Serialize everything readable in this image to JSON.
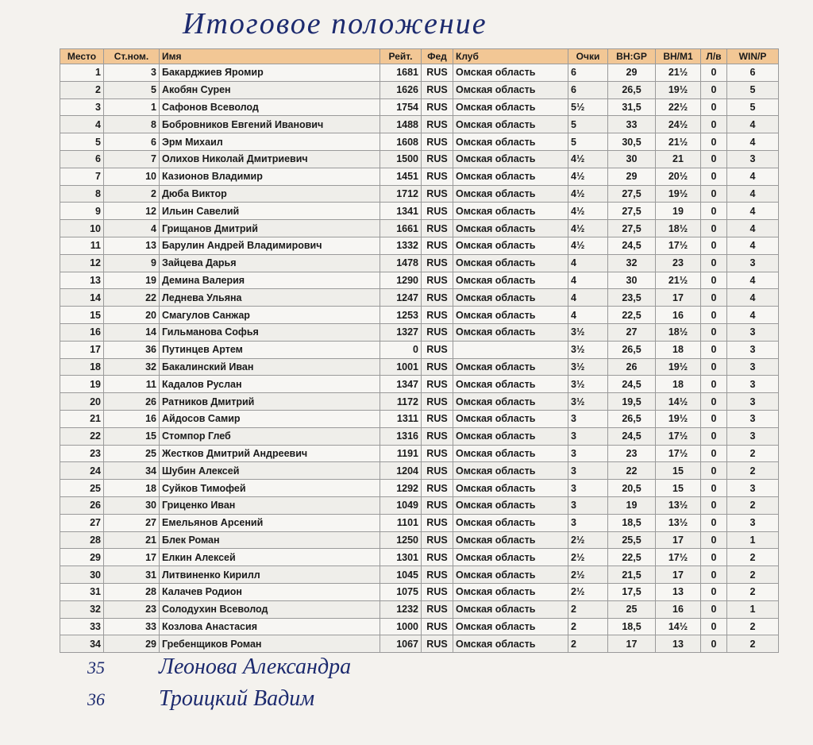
{
  "header": {
    "title": "Итоговое положение"
  },
  "table": {
    "columns": [
      "Место",
      "Ст.ном.",
      "Имя",
      "Рейт.",
      "Фед",
      "Клуб",
      "Очки",
      "ВН:GP",
      "ВН/М1",
      "Л/в",
      "WIN/P"
    ],
    "rows": [
      [
        "1",
        "3",
        "Бакарджиев Яромир",
        "1681",
        "RUS",
        "Омская область",
        "6",
        "29",
        "21½",
        "0",
        "6"
      ],
      [
        "2",
        "5",
        "Акобян Сурен",
        "1626",
        "RUS",
        "Омская область",
        "6",
        "26,5",
        "19½",
        "0",
        "5"
      ],
      [
        "3",
        "1",
        "Сафонов Всеволод",
        "1754",
        "RUS",
        "Омская область",
        "5½",
        "31,5",
        "22½",
        "0",
        "5"
      ],
      [
        "4",
        "8",
        "Бобровников Евгений Иванович",
        "1488",
        "RUS",
        "Омская область",
        "5",
        "33",
        "24½",
        "0",
        "4"
      ],
      [
        "5",
        "6",
        "Эрм Михаил",
        "1608",
        "RUS",
        "Омская область",
        "5",
        "30,5",
        "21½",
        "0",
        "4"
      ],
      [
        "6",
        "7",
        "Олихов Николай Дмитриевич",
        "1500",
        "RUS",
        "Омская область",
        "4½",
        "30",
        "21",
        "0",
        "3"
      ],
      [
        "7",
        "10",
        "Казионов Владимир",
        "1451",
        "RUS",
        "Омская область",
        "4½",
        "29",
        "20½",
        "0",
        "4"
      ],
      [
        "8",
        "2",
        "Дюба Виктор",
        "1712",
        "RUS",
        "Омская область",
        "4½",
        "27,5",
        "19½",
        "0",
        "4"
      ],
      [
        "9",
        "12",
        "Ильин Савелий",
        "1341",
        "RUS",
        "Омская область",
        "4½",
        "27,5",
        "19",
        "0",
        "4"
      ],
      [
        "10",
        "4",
        "Грищанов Дмитрий",
        "1661",
        "RUS",
        "Омская область",
        "4½",
        "27,5",
        "18½",
        "0",
        "4"
      ],
      [
        "11",
        "13",
        "Барулин Андрей Владимирович",
        "1332",
        "RUS",
        "Омская область",
        "4½",
        "24,5",
        "17½",
        "0",
        "4"
      ],
      [
        "12",
        "9",
        "Зайцева Дарья",
        "1478",
        "RUS",
        "Омская область",
        "4",
        "32",
        "23",
        "0",
        "3"
      ],
      [
        "13",
        "19",
        "Демина Валерия",
        "1290",
        "RUS",
        "Омская область",
        "4",
        "30",
        "21½",
        "0",
        "4"
      ],
      [
        "14",
        "22",
        "Леднева Ульяна",
        "1247",
        "RUS",
        "Омская область",
        "4",
        "23,5",
        "17",
        "0",
        "4"
      ],
      [
        "15",
        "20",
        "Смагулов Санжар",
        "1253",
        "RUS",
        "Омская область",
        "4",
        "22,5",
        "16",
        "0",
        "4"
      ],
      [
        "16",
        "14",
        "Гильманова Софья",
        "1327",
        "RUS",
        "Омская область",
        "3½",
        "27",
        "18½",
        "0",
        "3"
      ],
      [
        "17",
        "36",
        "Путинцев Артем",
        "0",
        "RUS",
        null,
        "3½",
        "26,5",
        "18",
        "0",
        "3"
      ],
      [
        "18",
        "32",
        "Бакалинский Иван",
        "1001",
        "RUS",
        "Омская область",
        "3½",
        "26",
        "19½",
        "0",
        "3"
      ],
      [
        "19",
        "11",
        "Кадалов Руслан",
        "1347",
        "RUS",
        "Омская область",
        "3½",
        "24,5",
        "18",
        "0",
        "3"
      ],
      [
        "20",
        "26",
        "Ратников Дмитрий",
        "1172",
        "RUS",
        "Омская область",
        "3½",
        "19,5",
        "14½",
        "0",
        "3"
      ],
      [
        "21",
        "16",
        "Айдосов Самир",
        "1311",
        "RUS",
        "Омская область",
        "3",
        "26,5",
        "19½",
        "0",
        "3"
      ],
      [
        "22",
        "15",
        "Стомпор Глеб",
        "1316",
        "RUS",
        "Омская область",
        "3",
        "24,5",
        "17½",
        "0",
        "3"
      ],
      [
        "23",
        "25",
        "Жестков Дмитрий Андреевич",
        "1191",
        "RUS",
        "Омская область",
        "3",
        "23",
        "17½",
        "0",
        "2"
      ],
      [
        "24",
        "34",
        "Шубин Алексей",
        "1204",
        "RUS",
        "Омская область",
        "3",
        "22",
        "15",
        "0",
        "2"
      ],
      [
        "25",
        "18",
        "Суйков Тимофей",
        "1292",
        "RUS",
        "Омская область",
        "3",
        "20,5",
        "15",
        "0",
        "3"
      ],
      [
        "26",
        "30",
        "Гриценко Иван",
        "1049",
        "RUS",
        "Омская область",
        "3",
        "19",
        "13½",
        "0",
        "2"
      ],
      [
        "27",
        "27",
        "Емельянов Арсений",
        "1101",
        "RUS",
        "Омская область",
        "3",
        "18,5",
        "13½",
        "0",
        "3"
      ],
      [
        "28",
        "21",
        "Блек Роман",
        "1250",
        "RUS",
        "Омская область",
        "2½",
        "25,5",
        "17",
        "0",
        "1"
      ],
      [
        "29",
        "17",
        "Елкин Алексей",
        "1301",
        "RUS",
        "Омская область",
        "2½",
        "22,5",
        "17½",
        "0",
        "2"
      ],
      [
        "30",
        "31",
        "Литвиненко Кирилл",
        "1045",
        "RUS",
        "Омская область",
        "2½",
        "21,5",
        "17",
        "0",
        "2"
      ],
      [
        "31",
        "28",
        "Калачев Родион",
        "1075",
        "RUS",
        "Омская область",
        "2½",
        "17,5",
        "13",
        "0",
        "2"
      ],
      [
        "32",
        "23",
        "Солодухин Всеволод",
        "1232",
        "RUS",
        "Омская область",
        "2",
        "25",
        "16",
        "0",
        "1"
      ],
      [
        "33",
        "33",
        "Козлова Анастасия",
        "1000",
        "RUS",
        "Омская область",
        "2",
        "18,5",
        "14½",
        "0",
        "2"
      ],
      [
        "34",
        "29",
        "Гребенщиков Роман",
        "1067",
        "RUS",
        "Омская область",
        "2",
        "17",
        "13",
        "0",
        "2"
      ]
    ]
  },
  "notes": [
    {
      "place": "35",
      "name": "Леонова Александра"
    },
    {
      "place": "36",
      "name": "Троицкий Вадим"
    }
  ]
}
